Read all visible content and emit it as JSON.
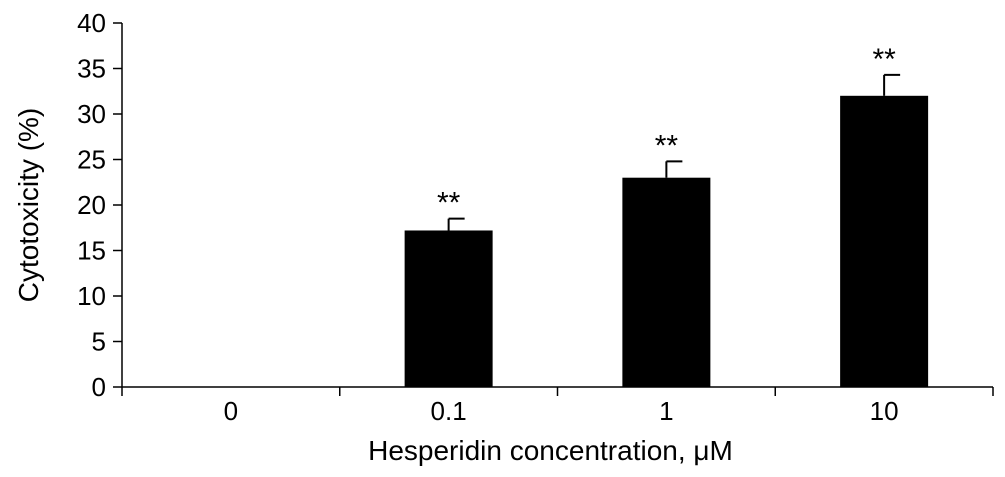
{
  "chart_data": {
    "type": "bar",
    "xlabel": "Hesperidin concentration, μM",
    "ylabel": "Cytotoxicity (%)",
    "categories": [
      "0",
      "0.1",
      "1",
      "10"
    ],
    "values": [
      0,
      17.2,
      23.0,
      32.0
    ],
    "error_bars": [
      0,
      1.3,
      1.8,
      2.3
    ],
    "annotations": [
      "",
      "**",
      "**",
      "**"
    ],
    "ylim": [
      0,
      40
    ],
    "yticks": [
      0,
      5,
      10,
      15,
      20,
      25,
      30,
      35,
      40
    ],
    "grid": false,
    "legend": "none",
    "bar_color": "#000000"
  }
}
